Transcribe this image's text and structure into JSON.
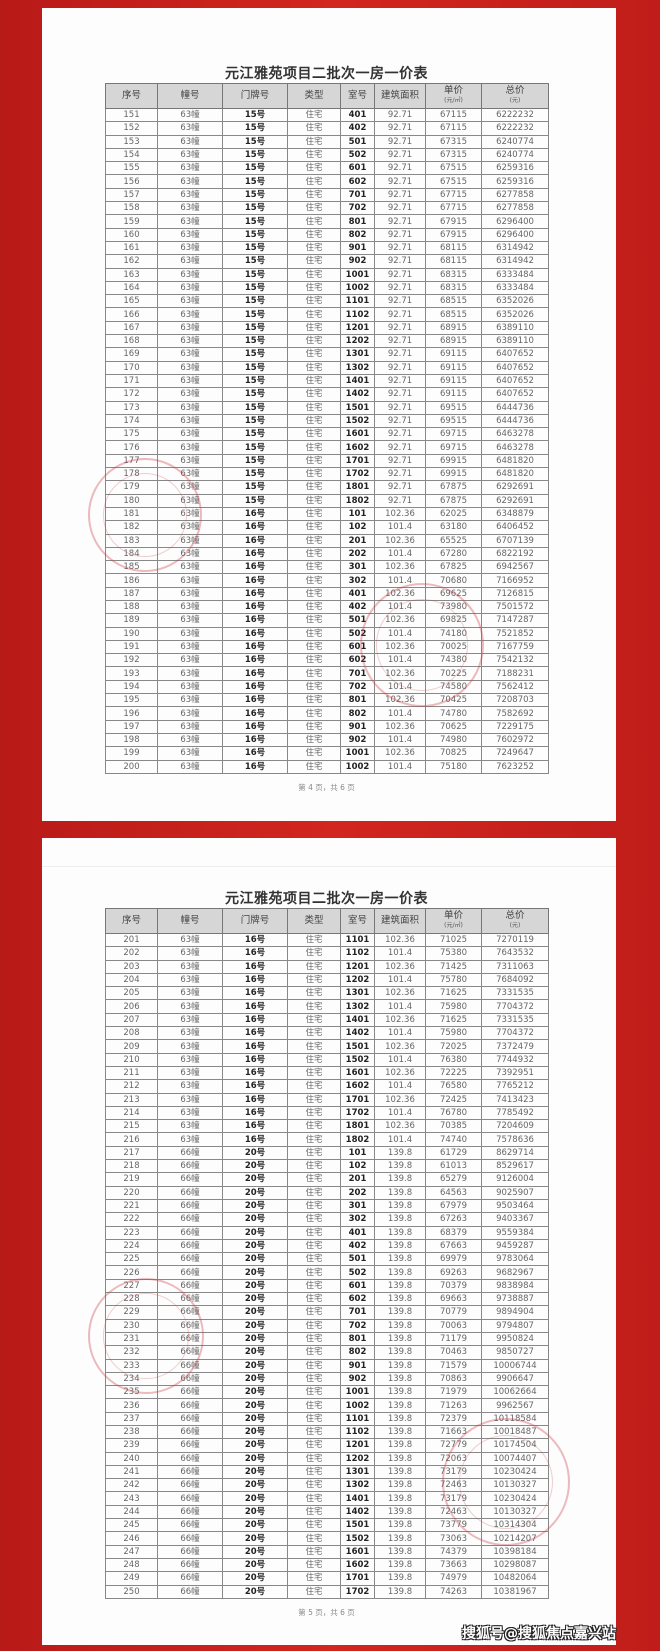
{
  "colors": {
    "background": "#c8201e",
    "paper": "#fdfdfd",
    "header_bg": "#d6d6d6",
    "stamp": "#c83c46"
  },
  "headers": [
    {
      "label": "序号"
    },
    {
      "label": "幢号"
    },
    {
      "label": "门牌号"
    },
    {
      "label": "类型"
    },
    {
      "label": "室号"
    },
    {
      "label": "建筑面积"
    },
    {
      "label": "单价",
      "unit": "(元/㎡)"
    },
    {
      "label": "总价",
      "unit": "(元)"
    }
  ],
  "pages": [
    {
      "title": "元江雅苑项目二批次一房一价表",
      "footer": "第 4 页，共 6 页",
      "rows": [
        [
          "151",
          "63幢",
          "15号",
          "住宅",
          "401",
          "92.71",
          "67115",
          "6222232"
        ],
        [
          "152",
          "63幢",
          "15号",
          "住宅",
          "402",
          "92.71",
          "67115",
          "6222232"
        ],
        [
          "153",
          "63幢",
          "15号",
          "住宅",
          "501",
          "92.71",
          "67315",
          "6240774"
        ],
        [
          "154",
          "63幢",
          "15号",
          "住宅",
          "502",
          "92.71",
          "67315",
          "6240774"
        ],
        [
          "155",
          "63幢",
          "15号",
          "住宅",
          "601",
          "92.71",
          "67515",
          "6259316"
        ],
        [
          "156",
          "63幢",
          "15号",
          "住宅",
          "602",
          "92.71",
          "67515",
          "6259316"
        ],
        [
          "157",
          "63幢",
          "15号",
          "住宅",
          "701",
          "92.71",
          "67715",
          "6277858"
        ],
        [
          "158",
          "63幢",
          "15号",
          "住宅",
          "702",
          "92.71",
          "67715",
          "6277858"
        ],
        [
          "159",
          "63幢",
          "15号",
          "住宅",
          "801",
          "92.71",
          "67915",
          "6296400"
        ],
        [
          "160",
          "63幢",
          "15号",
          "住宅",
          "802",
          "92.71",
          "67915",
          "6296400"
        ],
        [
          "161",
          "63幢",
          "15号",
          "住宅",
          "901",
          "92.71",
          "68115",
          "6314942"
        ],
        [
          "162",
          "63幢",
          "15号",
          "住宅",
          "902",
          "92.71",
          "68115",
          "6314942"
        ],
        [
          "163",
          "63幢",
          "15号",
          "住宅",
          "1001",
          "92.71",
          "68315",
          "6333484"
        ],
        [
          "164",
          "63幢",
          "15号",
          "住宅",
          "1002",
          "92.71",
          "68315",
          "6333484"
        ],
        [
          "165",
          "63幢",
          "15号",
          "住宅",
          "1101",
          "92.71",
          "68515",
          "6352026"
        ],
        [
          "166",
          "63幢",
          "15号",
          "住宅",
          "1102",
          "92.71",
          "68515",
          "6352026"
        ],
        [
          "167",
          "63幢",
          "15号",
          "住宅",
          "1201",
          "92.71",
          "68915",
          "6389110"
        ],
        [
          "168",
          "63幢",
          "15号",
          "住宅",
          "1202",
          "92.71",
          "68915",
          "6389110"
        ],
        [
          "169",
          "63幢",
          "15号",
          "住宅",
          "1301",
          "92.71",
          "69115",
          "6407652"
        ],
        [
          "170",
          "63幢",
          "15号",
          "住宅",
          "1302",
          "92.71",
          "69115",
          "6407652"
        ],
        [
          "171",
          "63幢",
          "15号",
          "住宅",
          "1401",
          "92.71",
          "69115",
          "6407652"
        ],
        [
          "172",
          "63幢",
          "15号",
          "住宅",
          "1402",
          "92.71",
          "69115",
          "6407652"
        ],
        [
          "173",
          "63幢",
          "15号",
          "住宅",
          "1501",
          "92.71",
          "69515",
          "6444736"
        ],
        [
          "174",
          "63幢",
          "15号",
          "住宅",
          "1502",
          "92.71",
          "69515",
          "6444736"
        ],
        [
          "175",
          "63幢",
          "15号",
          "住宅",
          "1601",
          "92.71",
          "69715",
          "6463278"
        ],
        [
          "176",
          "63幢",
          "15号",
          "住宅",
          "1602",
          "92.71",
          "69715",
          "6463278"
        ],
        [
          "177",
          "63幢",
          "15号",
          "住宅",
          "1701",
          "92.71",
          "69915",
          "6481820"
        ],
        [
          "178",
          "63幢",
          "15号",
          "住宅",
          "1702",
          "92.71",
          "69915",
          "6481820"
        ],
        [
          "179",
          "63幢",
          "15号",
          "住宅",
          "1801",
          "92.71",
          "67875",
          "6292691"
        ],
        [
          "180",
          "63幢",
          "15号",
          "住宅",
          "1802",
          "92.71",
          "67875",
          "6292691"
        ],
        [
          "181",
          "63幢",
          "16号",
          "住宅",
          "101",
          "102.36",
          "62025",
          "6348879"
        ],
        [
          "182",
          "63幢",
          "16号",
          "住宅",
          "102",
          "101.4",
          "63180",
          "6406452"
        ],
        [
          "183",
          "63幢",
          "16号",
          "住宅",
          "201",
          "102.36",
          "65525",
          "6707139"
        ],
        [
          "184",
          "63幢",
          "16号",
          "住宅",
          "202",
          "101.4",
          "67280",
          "6822192"
        ],
        [
          "185",
          "63幢",
          "16号",
          "住宅",
          "301",
          "102.36",
          "67825",
          "6942567"
        ],
        [
          "186",
          "63幢",
          "16号",
          "住宅",
          "302",
          "101.4",
          "70680",
          "7166952"
        ],
        [
          "187",
          "63幢",
          "16号",
          "住宅",
          "401",
          "102.36",
          "69625",
          "7126815"
        ],
        [
          "188",
          "63幢",
          "16号",
          "住宅",
          "402",
          "101.4",
          "73980",
          "7501572"
        ],
        [
          "189",
          "63幢",
          "16号",
          "住宅",
          "501",
          "102.36",
          "69825",
          "7147287"
        ],
        [
          "190",
          "63幢",
          "16号",
          "住宅",
          "502",
          "101.4",
          "74180",
          "7521852"
        ],
        [
          "191",
          "63幢",
          "16号",
          "住宅",
          "601",
          "102.36",
          "70025",
          "7167759"
        ],
        [
          "192",
          "63幢",
          "16号",
          "住宅",
          "602",
          "101.4",
          "74380",
          "7542132"
        ],
        [
          "193",
          "63幢",
          "16号",
          "住宅",
          "701",
          "102.36",
          "70225",
          "7188231"
        ],
        [
          "194",
          "63幢",
          "16号",
          "住宅",
          "702",
          "101.4",
          "74580",
          "7562412"
        ],
        [
          "195",
          "63幢",
          "16号",
          "住宅",
          "801",
          "102.36",
          "70425",
          "7208703"
        ],
        [
          "196",
          "63幢",
          "16号",
          "住宅",
          "802",
          "101.4",
          "74780",
          "7582692"
        ],
        [
          "197",
          "63幢",
          "16号",
          "住宅",
          "901",
          "102.36",
          "70625",
          "7229175"
        ],
        [
          "198",
          "63幢",
          "16号",
          "住宅",
          "902",
          "101.4",
          "74980",
          "7602972"
        ],
        [
          "199",
          "63幢",
          "16号",
          "住宅",
          "1001",
          "102.36",
          "70825",
          "7249647"
        ],
        [
          "200",
          "63幢",
          "16号",
          "住宅",
          "1002",
          "101.4",
          "75180",
          "7623252"
        ]
      ]
    },
    {
      "title": "元江雅苑项目二批次一房一价表",
      "footer": "第 5 页，共 6 页",
      "rows": [
        [
          "201",
          "63幢",
          "16号",
          "住宅",
          "1101",
          "102.36",
          "71025",
          "7270119"
        ],
        [
          "202",
          "63幢",
          "16号",
          "住宅",
          "1102",
          "101.4",
          "75380",
          "7643532"
        ],
        [
          "203",
          "63幢",
          "16号",
          "住宅",
          "1201",
          "102.36",
          "71425",
          "7311063"
        ],
        [
          "204",
          "63幢",
          "16号",
          "住宅",
          "1202",
          "101.4",
          "75780",
          "7684092"
        ],
        [
          "205",
          "63幢",
          "16号",
          "住宅",
          "1301",
          "102.36",
          "71625",
          "7331535"
        ],
        [
          "206",
          "63幢",
          "16号",
          "住宅",
          "1302",
          "101.4",
          "75980",
          "7704372"
        ],
        [
          "207",
          "63幢",
          "16号",
          "住宅",
          "1401",
          "102.36",
          "71625",
          "7331535"
        ],
        [
          "208",
          "63幢",
          "16号",
          "住宅",
          "1402",
          "101.4",
          "75980",
          "7704372"
        ],
        [
          "209",
          "63幢",
          "16号",
          "住宅",
          "1501",
          "102.36",
          "72025",
          "7372479"
        ],
        [
          "210",
          "63幢",
          "16号",
          "住宅",
          "1502",
          "101.4",
          "76380",
          "7744932"
        ],
        [
          "211",
          "63幢",
          "16号",
          "住宅",
          "1601",
          "102.36",
          "72225",
          "7392951"
        ],
        [
          "212",
          "63幢",
          "16号",
          "住宅",
          "1602",
          "101.4",
          "76580",
          "7765212"
        ],
        [
          "213",
          "63幢",
          "16号",
          "住宅",
          "1701",
          "102.36",
          "72425",
          "7413423"
        ],
        [
          "214",
          "63幢",
          "16号",
          "住宅",
          "1702",
          "101.4",
          "76780",
          "7785492"
        ],
        [
          "215",
          "63幢",
          "16号",
          "住宅",
          "1801",
          "102.36",
          "70385",
          "7204609"
        ],
        [
          "216",
          "63幢",
          "16号",
          "住宅",
          "1802",
          "101.4",
          "74740",
          "7578636"
        ],
        [
          "217",
          "66幢",
          "20号",
          "住宅",
          "101",
          "139.8",
          "61729",
          "8629714"
        ],
        [
          "218",
          "66幢",
          "20号",
          "住宅",
          "102",
          "139.8",
          "61013",
          "8529617"
        ],
        [
          "219",
          "66幢",
          "20号",
          "住宅",
          "201",
          "139.8",
          "65279",
          "9126004"
        ],
        [
          "220",
          "66幢",
          "20号",
          "住宅",
          "202",
          "139.8",
          "64563",
          "9025907"
        ],
        [
          "221",
          "66幢",
          "20号",
          "住宅",
          "301",
          "139.8",
          "67979",
          "9503464"
        ],
        [
          "222",
          "66幢",
          "20号",
          "住宅",
          "302",
          "139.8",
          "67263",
          "9403367"
        ],
        [
          "223",
          "66幢",
          "20号",
          "住宅",
          "401",
          "139.8",
          "68379",
          "9559384"
        ],
        [
          "224",
          "66幢",
          "20号",
          "住宅",
          "402",
          "139.8",
          "67663",
          "9459287"
        ],
        [
          "225",
          "66幢",
          "20号",
          "住宅",
          "501",
          "139.8",
          "69979",
          "9783064"
        ],
        [
          "226",
          "66幢",
          "20号",
          "住宅",
          "502",
          "139.8",
          "69263",
          "9682967"
        ],
        [
          "227",
          "66幢",
          "20号",
          "住宅",
          "601",
          "139.8",
          "70379",
          "9838984"
        ],
        [
          "228",
          "66幢",
          "20号",
          "住宅",
          "602",
          "139.8",
          "69663",
          "9738887"
        ],
        [
          "229",
          "66幢",
          "20号",
          "住宅",
          "701",
          "139.8",
          "70779",
          "9894904"
        ],
        [
          "230",
          "66幢",
          "20号",
          "住宅",
          "702",
          "139.8",
          "70063",
          "9794807"
        ],
        [
          "231",
          "66幢",
          "20号",
          "住宅",
          "801",
          "139.8",
          "71179",
          "9950824"
        ],
        [
          "232",
          "66幢",
          "20号",
          "住宅",
          "802",
          "139.8",
          "70463",
          "9850727"
        ],
        [
          "233",
          "66幢",
          "20号",
          "住宅",
          "901",
          "139.8",
          "71579",
          "10006744"
        ],
        [
          "234",
          "66幢",
          "20号",
          "住宅",
          "902",
          "139.8",
          "70863",
          "9906647"
        ],
        [
          "235",
          "66幢",
          "20号",
          "住宅",
          "1001",
          "139.8",
          "71979",
          "10062664"
        ],
        [
          "236",
          "66幢",
          "20号",
          "住宅",
          "1002",
          "139.8",
          "71263",
          "9962567"
        ],
        [
          "237",
          "66幢",
          "20号",
          "住宅",
          "1101",
          "139.8",
          "72379",
          "10118584"
        ],
        [
          "238",
          "66幢",
          "20号",
          "住宅",
          "1102",
          "139.8",
          "71663",
          "10018487"
        ],
        [
          "239",
          "66幢",
          "20号",
          "住宅",
          "1201",
          "139.8",
          "72779",
          "10174504"
        ],
        [
          "240",
          "66幢",
          "20号",
          "住宅",
          "1202",
          "139.8",
          "72063",
          "10074407"
        ],
        [
          "241",
          "66幢",
          "20号",
          "住宅",
          "1301",
          "139.8",
          "73179",
          "10230424"
        ],
        [
          "242",
          "66幢",
          "20号",
          "住宅",
          "1302",
          "139.8",
          "72463",
          "10130327"
        ],
        [
          "243",
          "66幢",
          "20号",
          "住宅",
          "1401",
          "139.8",
          "73179",
          "10230424"
        ],
        [
          "244",
          "66幢",
          "20号",
          "住宅",
          "1402",
          "139.8",
          "72463",
          "10130327"
        ],
        [
          "245",
          "66幢",
          "20号",
          "住宅",
          "1501",
          "139.8",
          "73779",
          "10314304"
        ],
        [
          "246",
          "66幢",
          "20号",
          "住宅",
          "1502",
          "139.8",
          "73063",
          "10214207"
        ],
        [
          "247",
          "66幢",
          "20号",
          "住宅",
          "1601",
          "139.8",
          "74379",
          "10398184"
        ],
        [
          "248",
          "66幢",
          "20号",
          "住宅",
          "1602",
          "139.8",
          "73663",
          "10298087"
        ],
        [
          "249",
          "66幢",
          "20号",
          "住宅",
          "1701",
          "139.8",
          "74979",
          "10482064"
        ],
        [
          "250",
          "66幢",
          "20号",
          "住宅",
          "1702",
          "139.8",
          "74263",
          "10381967"
        ]
      ]
    }
  ],
  "watermark": "搜狐号@搜狐焦点嘉兴站"
}
